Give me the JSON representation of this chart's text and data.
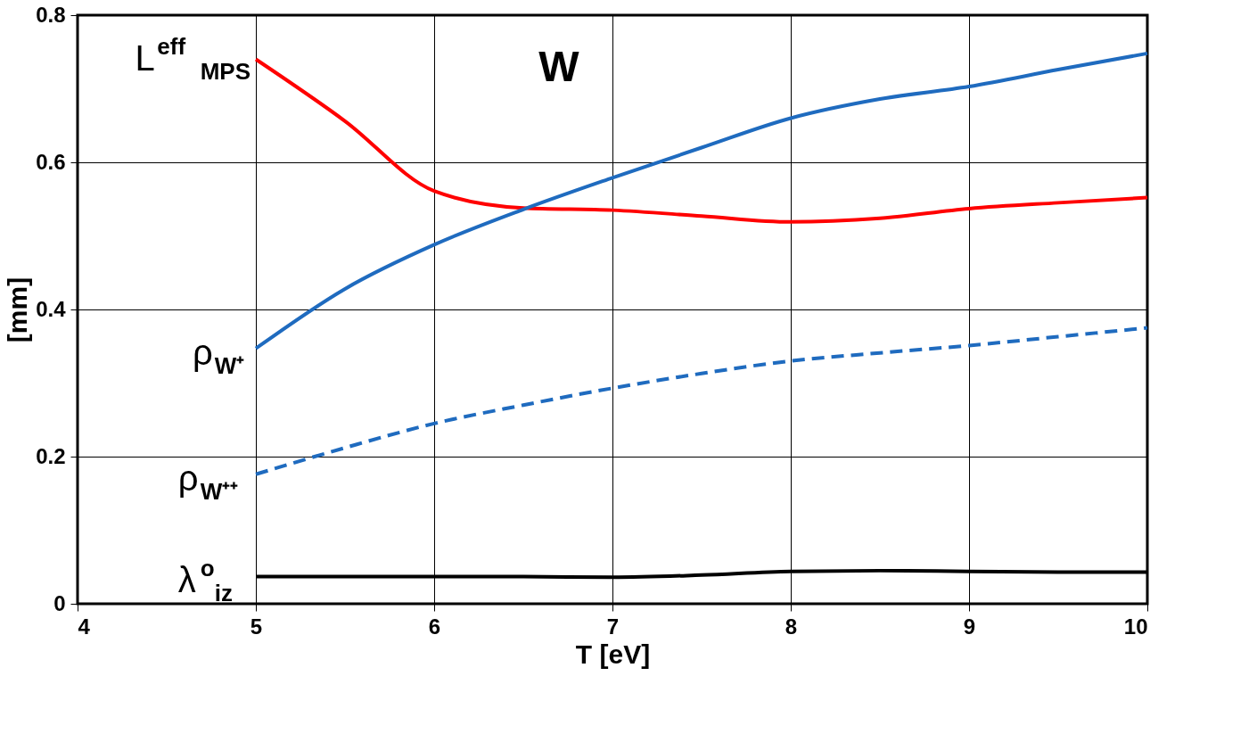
{
  "chart_data": {
    "type": "line",
    "xlabel": "T [eV]",
    "ylabel": "[mm]",
    "annotations": [
      "W"
    ],
    "x": [
      5,
      5.5,
      6,
      6.5,
      7,
      7.5,
      8,
      8.5,
      9,
      9.5,
      10
    ],
    "series": [
      {
        "name": "L$^{eff}$$_{MPS}$",
        "color": "#ff0000",
        "line_style": "solid",
        "values": [
          0.74,
          0.656,
          0.561,
          0.538,
          0.535,
          0.527,
          0.519,
          0.524,
          0.537,
          0.545,
          0.552
        ]
      },
      {
        "name": "ρ$_{W⁺}$",
        "color": "#1f6bbf",
        "line_style": "solid",
        "values": [
          0.347,
          0.428,
          0.488,
          0.536,
          0.579,
          0.62,
          0.66,
          0.686,
          0.703,
          0.726,
          0.748
        ]
      },
      {
        "name": "ρ$_{W⁺⁺}$",
        "color": "#1f6bbf",
        "line_style": "dashed",
        "values": [
          0.176,
          0.212,
          0.245,
          0.27,
          0.293,
          0.313,
          0.33,
          0.341,
          0.351,
          0.363,
          0.375
        ]
      },
      {
        "name": "λ$^{o}$$_{iz}$",
        "color": "#000000",
        "line_style": "solid",
        "values": [
          0.037,
          0.037,
          0.037,
          0.037,
          0.036,
          0.039,
          0.044,
          0.045,
          0.044,
          0.043,
          0.043
        ]
      }
    ],
    "xlim": [
      4,
      10
    ],
    "ylim": [
      0,
      0.8
    ],
    "xticks": [
      4,
      5,
      6,
      7,
      8,
      9,
      10
    ],
    "yticks": [
      0,
      0.2,
      0.4,
      0.6,
      0.8
    ],
    "grid": true,
    "marker": "none"
  }
}
